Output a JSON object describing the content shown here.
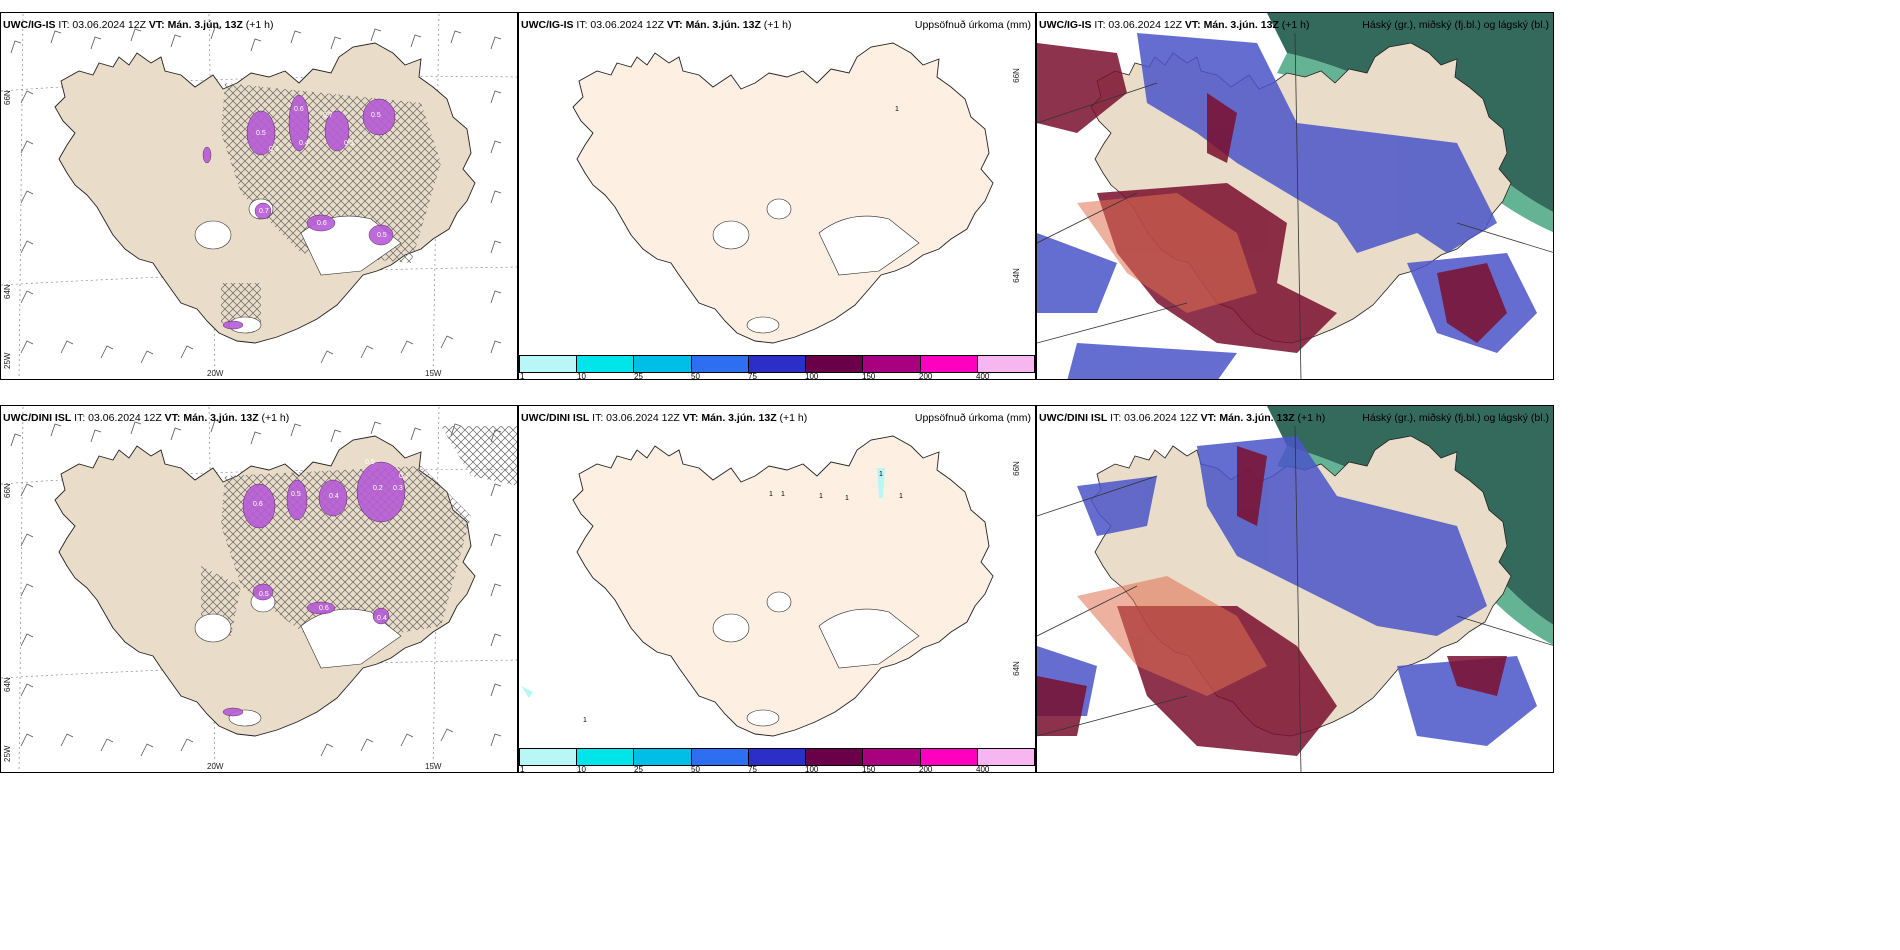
{
  "panels": [
    {
      "model": "UWC/IG-IS",
      "it": "IT: 03.06.2024 12Z",
      "vt_label": "VT:",
      "vt": "Mán. 3.jún. 13Z",
      "lead": "(+1 h)",
      "right": ""
    },
    {
      "model": "UWC/IG-IS",
      "it": "IT: 03.06.2024 12Z",
      "vt_label": "VT:",
      "vt": "Mán. 3.jún. 13Z",
      "lead": "(+1 h)",
      "right": "Uppsöfnuð úrkoma (mm)"
    },
    {
      "model": "UWC/IG-IS",
      "it": "IT: 03.06.2024 12Z",
      "vt_label": "VT:",
      "vt": "Mán. 3.jún. 13Z",
      "lead": "(+1 h)",
      "right": "Háský (gr.), miðský (fj.bl.) og lágský (bl.)"
    },
    {
      "model": "UWC/DINI ISL",
      "it": "IT: 03.06.2024 12Z",
      "vt_label": "VT:",
      "vt": "Mán. 3.jún. 13Z",
      "lead": "(+1 h)",
      "right": ""
    },
    {
      "model": "UWC/DINI ISL",
      "it": "IT: 03.06.2024 12Z",
      "vt_label": "VT:",
      "vt": "Mán. 3.jún. 13Z",
      "lead": "(+1 h)",
      "right": "Uppsöfnuð úrkoma (mm)"
    },
    {
      "model": "UWC/DINI ISL",
      "it": "IT: 03.06.2024 12Z",
      "vt_label": "VT:",
      "vt": "Mán. 3.jún. 13Z",
      "lead": "(+1 h)",
      "right": "Háský (gr.), miðský (fj.bl.) og lágský (bl.)"
    }
  ],
  "grid_labels": {
    "lat66": "66N",
    "lat64": "64N",
    "lon25": "25W",
    "lon20": "20W",
    "lon15": "15W"
  },
  "colorbar": {
    "ticks": [
      "1",
      "10",
      "25",
      "50",
      "75",
      "100",
      "150",
      "200",
      "400"
    ],
    "colors": [
      "#b9f7f7",
      "#00e5ea",
      "#00bfe6",
      "#2e6ef0",
      "#2b2fc8",
      "#6a0047",
      "#a8007f",
      "#ff00bf",
      "#f7b6f0"
    ]
  },
  "precip_marks": {
    "top": [
      "1"
    ],
    "bottom": [
      "1",
      "1",
      "1",
      "1",
      "1",
      "1",
      "1"
    ]
  },
  "wind_map_labels": {
    "top": [
      "0.5",
      "0.6",
      "0.7",
      "0.5",
      "0.3",
      "0.7",
      "0.6",
      "0.5",
      "0.4",
      "0.3"
    ],
    "bottom": [
      "0.6",
      "0.5",
      "0.4",
      "0.5",
      "0.2",
      "0.3",
      "0.1",
      "0.5",
      "0.4",
      "0.6"
    ]
  },
  "legend_colors": {
    "land": "#e9dcc8",
    "land_precip": "#fdf0e3",
    "high_cloud": "#1e5a4a",
    "mid_cloud": "#4a55c8",
    "low_cloud": "#7a0f2e"
  }
}
